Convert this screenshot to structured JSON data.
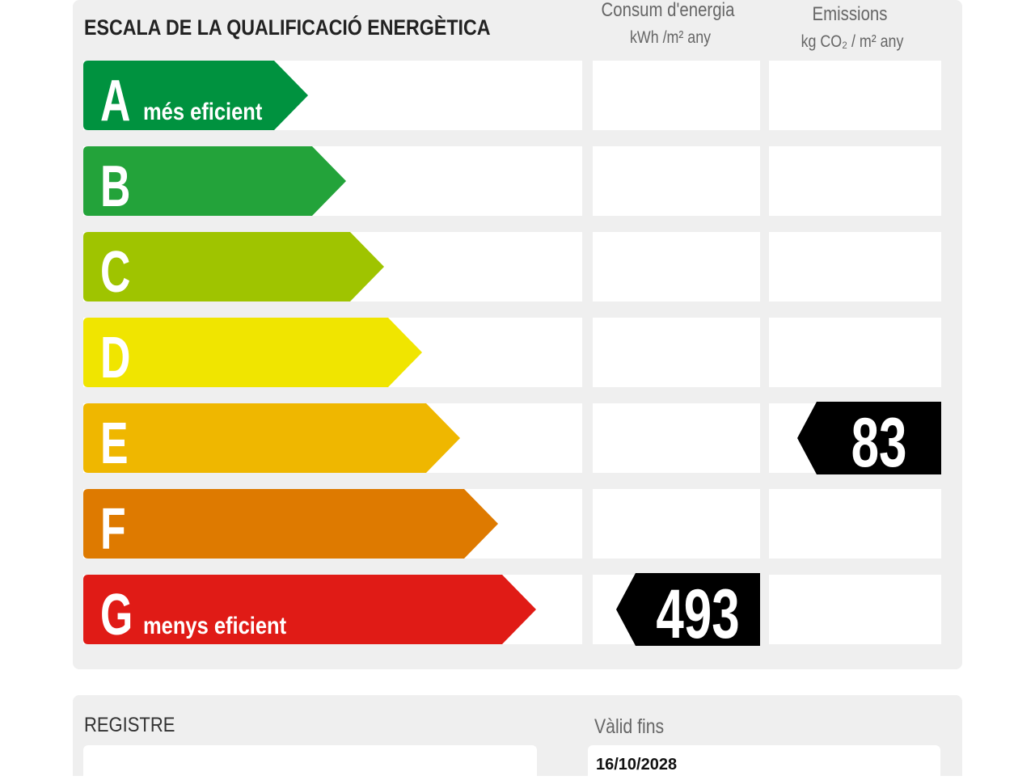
{
  "header": {
    "title": "ESCALA DE LA QUALIFICACIÓ ENERGÈTICA"
  },
  "columns": [
    {
      "title": "Consum d'energia",
      "unit": "kWh /m² any"
    },
    {
      "title": "Emissions",
      "unit": "kg CO₂ / m² any"
    }
  ],
  "grades": [
    {
      "letter": "A",
      "label": "més eficient",
      "color": "#00923f"
    },
    {
      "letter": "B",
      "color": "#23a33a"
    },
    {
      "letter": "C",
      "color": "#9fc400"
    },
    {
      "letter": "D",
      "color": "#f0e500"
    },
    {
      "letter": "E",
      "color": "#efb700"
    },
    {
      "letter": "F",
      "color": "#de7a00"
    },
    {
      "letter": "G",
      "label": "menys eficient",
      "color": "#e01b16"
    }
  ],
  "ratings": [
    {
      "grade": "G",
      "value": 493
    },
    {
      "grade": "E",
      "value": 83
    }
  ],
  "register": {
    "label": "REGISTRE"
  },
  "validity": {
    "label": "Vàlid fins",
    "date": "16/10/2028"
  }
}
